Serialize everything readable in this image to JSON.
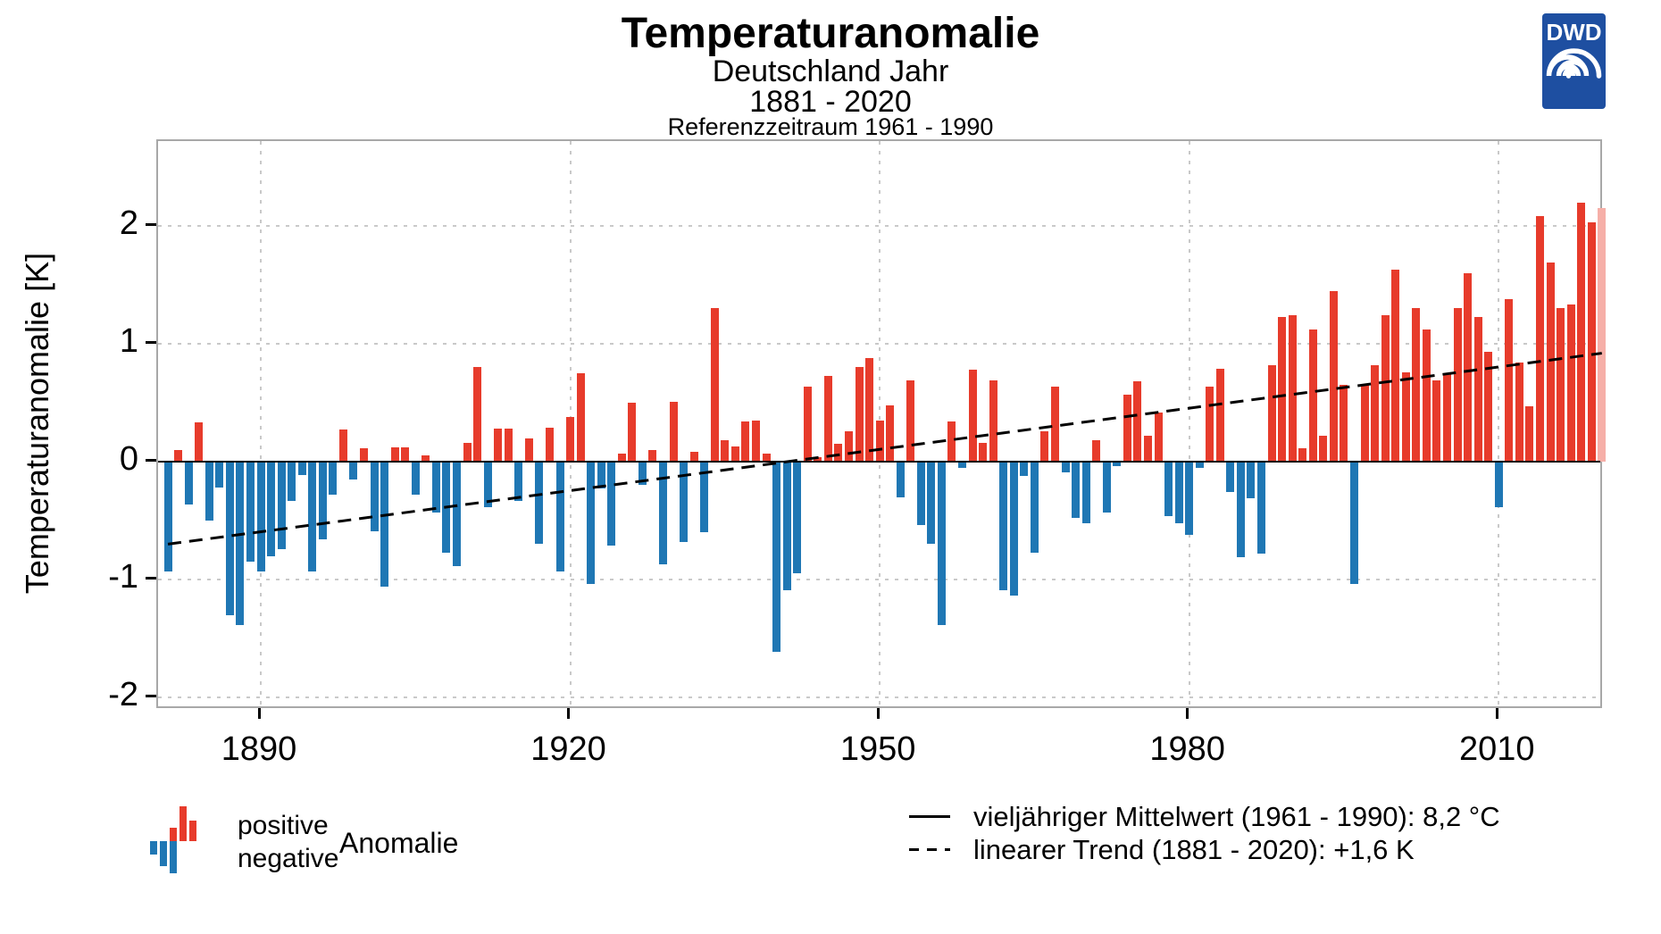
{
  "header": {
    "title": "Temperaturanomalie",
    "subtitle_region": "Deutschland Jahr",
    "subtitle_period": "1881 - 2020",
    "subtitle_reference": "Referenzzeitraum 1961 - 1990"
  },
  "logo": {
    "text": "DWD"
  },
  "y_axis": {
    "title": "Temperaturanomalie [K]",
    "ticks": [
      2,
      1,
      0,
      -1,
      -2
    ]
  },
  "x_axis": {
    "ticks": [
      1890,
      1920,
      1950,
      1980,
      2010
    ]
  },
  "legend_anomaly": {
    "positive_label": "positive",
    "negative_label": "negative",
    "label": "Anomalie",
    "icon_bars": [
      {
        "slot": 0,
        "v": -0.38
      },
      {
        "slot": 1,
        "v": -0.72
      },
      {
        "slot": 2,
        "v": 0.38
      },
      {
        "slot": 2,
        "v": -0.92
      },
      {
        "slot": 3,
        "v": 1.0
      },
      {
        "slot": 4,
        "v": 0.6
      }
    ]
  },
  "legend_lines": {
    "mean_label": "vieljähriger Mittelwert (1961 - 1990): 8,2 °C",
    "trend_label": "linearer Trend (1881 - 2020): +1,6 K"
  },
  "colors": {
    "positive": "#E73B2B",
    "negative": "#1F77B4",
    "highlight": "#F6AFA8",
    "grid": "#C9C9C9",
    "plot_border": "#A8A8A8",
    "zero_line": "#000000",
    "trend_line": "#000000",
    "logo_blue": "#1E4FA1"
  },
  "chart_data": {
    "type": "bar",
    "title": "Temperaturanomalie",
    "subtitle": "Deutschland Jahr 1881 - 2020, Referenzzeitraum 1961 - 1990",
    "xlabel": "",
    "ylabel": "Temperaturanomalie [K]",
    "unit": "K",
    "ylim": [
      -2.1,
      2.72
    ],
    "xlim": [
      1880,
      2021
    ],
    "grid": true,
    "legend_position": "bottom",
    "highlight_year": 2020,
    "mean_1961_1990": "8,2 °C",
    "trend_total": "+1,6 K",
    "trend_line": {
      "x1": 1881,
      "v1": -0.7,
      "x2": 2020,
      "v2": 0.92
    },
    "years": [
      1881,
      1882,
      1883,
      1884,
      1885,
      1886,
      1887,
      1888,
      1889,
      1890,
      1891,
      1892,
      1893,
      1894,
      1895,
      1896,
      1897,
      1898,
      1899,
      1900,
      1901,
      1902,
      1903,
      1904,
      1905,
      1906,
      1907,
      1908,
      1909,
      1910,
      1911,
      1912,
      1913,
      1914,
      1915,
      1916,
      1917,
      1918,
      1919,
      1920,
      1921,
      1922,
      1923,
      1924,
      1925,
      1926,
      1927,
      1928,
      1929,
      1930,
      1931,
      1932,
      1933,
      1934,
      1935,
      1936,
      1937,
      1938,
      1939,
      1940,
      1941,
      1942,
      1943,
      1944,
      1945,
      1946,
      1947,
      1948,
      1949,
      1950,
      1951,
      1952,
      1953,
      1954,
      1955,
      1956,
      1957,
      1958,
      1959,
      1960,
      1961,
      1962,
      1963,
      1964,
      1965,
      1966,
      1967,
      1968,
      1969,
      1970,
      1971,
      1972,
      1973,
      1974,
      1975,
      1976,
      1977,
      1978,
      1979,
      1980,
      1981,
      1982,
      1983,
      1984,
      1985,
      1986,
      1987,
      1988,
      1989,
      1990,
      1991,
      1992,
      1993,
      1994,
      1995,
      1996,
      1997,
      1998,
      1999,
      2000,
      2001,
      2002,
      2003,
      2004,
      2005,
      2006,
      2007,
      2008,
      2009,
      2010,
      2011,
      2012,
      2013,
      2014,
      2015,
      2016,
      2017,
      2018,
      2019,
      2020
    ],
    "values": [
      -0.93,
      0.1,
      -0.36,
      0.33,
      -0.5,
      -0.22,
      -1.3,
      -1.39,
      -0.85,
      -0.93,
      -0.8,
      -0.74,
      -0.33,
      -0.11,
      -0.93,
      -0.66,
      -0.28,
      0.27,
      -0.15,
      0.11,
      -0.59,
      -1.06,
      0.12,
      0.12,
      -0.28,
      0.05,
      -0.43,
      -0.77,
      -0.89,
      0.16,
      0.8,
      -0.39,
      0.28,
      0.28,
      -0.33,
      0.2,
      -0.7,
      0.29,
      -0.93,
      0.38,
      0.75,
      -1.04,
      -0.23,
      -0.71,
      0.07,
      0.5,
      -0.2,
      0.1,
      -0.87,
      0.51,
      -0.68,
      0.08,
      -0.6,
      1.3,
      0.18,
      0.13,
      0.34,
      0.35,
      0.07,
      -1.61,
      -1.09,
      -0.95,
      0.64,
      0.04,
      0.73,
      0.15,
      0.26,
      0.8,
      0.88,
      0.35,
      0.48,
      -0.3,
      0.69,
      -0.54,
      -0.7,
      -1.39,
      0.34,
      -0.05,
      0.78,
      0.16,
      0.69,
      -1.09,
      -1.14,
      -0.12,
      -0.77,
      0.26,
      0.64,
      -0.09,
      -0.48,
      -0.52,
      0.18,
      -0.43,
      -0.04,
      0.57,
      0.68,
      0.22,
      0.42,
      -0.46,
      -0.52,
      -0.62,
      -0.05,
      0.64,
      0.79,
      -0.26,
      -0.81,
      -0.31,
      -0.78,
      0.82,
      1.23,
      1.24,
      0.11,
      1.12,
      0.22,
      1.45,
      0.65,
      -1.04,
      0.65,
      0.82,
      1.24,
      1.63,
      0.76,
      1.3,
      1.12,
      0.69,
      0.74,
      1.3,
      1.6,
      1.23,
      0.93,
      -0.39,
      1.38,
      0.84,
      0.47,
      2.08,
      1.69,
      1.3,
      1.33,
      2.2,
      2.03,
      2.15
    ]
  }
}
